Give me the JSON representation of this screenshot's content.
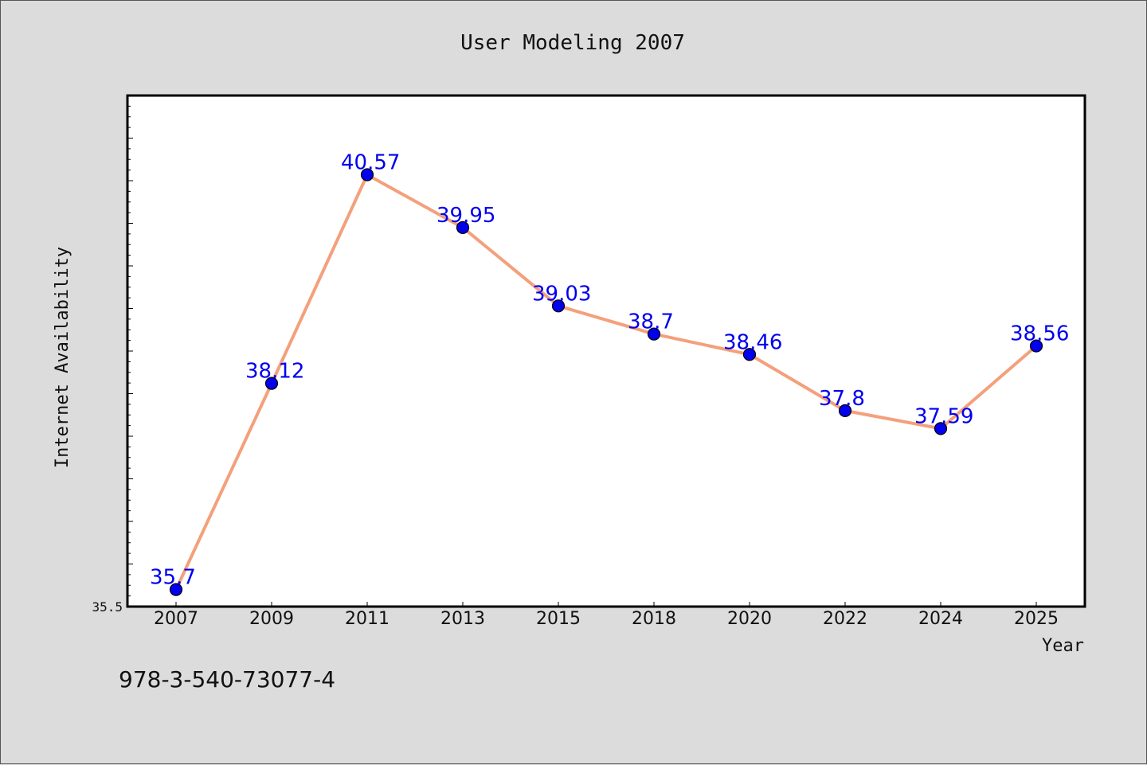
{
  "chart_data": {
    "type": "line",
    "title": "User Modeling 2007",
    "xlabel": "Year",
    "ylabel": "Internet Availability",
    "categories": [
      "2007",
      "2009",
      "2011",
      "2013",
      "2015",
      "2018",
      "2020",
      "2022",
      "2024",
      "2025"
    ],
    "series": [
      {
        "values": [
          35.7,
          38.12,
          40.57,
          39.95,
          39.03,
          38.7,
          38.46,
          37.8,
          37.59,
          38.56
        ],
        "data_labels": [
          "35.7",
          "38.12",
          "40.57",
          "39.95",
          "39.03",
          "38.7",
          "38.46",
          "37.8",
          "37.59",
          "38.56"
        ]
      }
    ],
    "ylim": [
      35.5,
      41.5
    ],
    "y_tick_labels": [
      "35.5"
    ],
    "grid": false,
    "line_color": "#f4a07c",
    "marker_color": "#0000ee",
    "label_color": "#0000ee"
  },
  "footnote": "978-3-540-73077-4"
}
